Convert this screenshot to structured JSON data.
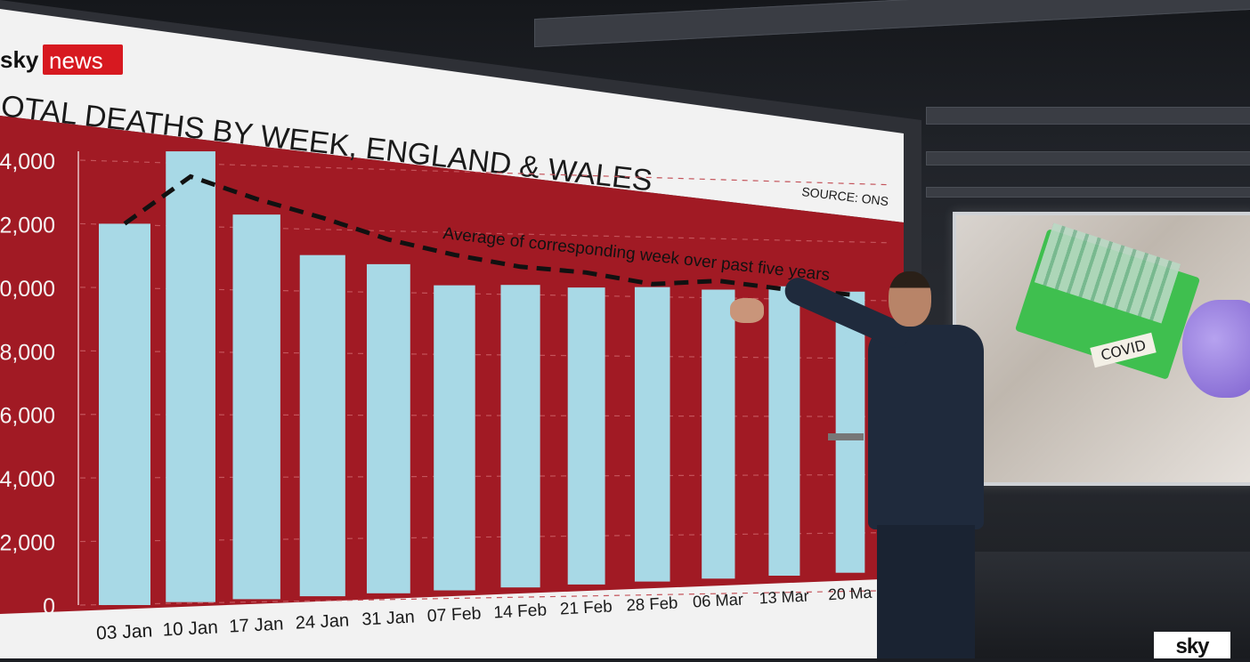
{
  "brand": {
    "sky": "sky",
    "news": "news"
  },
  "corner_logo": "sky",
  "chart_data": {
    "type": "bar",
    "title": "OTAL DEATHS BY WEEK, ENGLAND & WALES",
    "source": "SOURCE: ONS",
    "categories": [
      "03 Jan",
      "10 Jan",
      "17 Jan",
      "24 Jan",
      "31 Jan",
      "07 Feb",
      "14 Feb",
      "21 Feb",
      "28 Feb",
      "06 Mar",
      "13 Mar",
      "20 Ma"
    ],
    "series": [
      {
        "values": [
          12000,
          14300,
          12300,
          11000,
          10700,
          10000,
          10000,
          9900,
          9900,
          9800,
          9900,
          9700
        ]
      },
      {
        "name": "Average of corresponding week over past five years",
        "type": "line",
        "values": [
          12000,
          13500,
          12800,
          12200,
          11500,
          11000,
          10600,
          10400,
          10000,
          10100,
          9800,
          9600
        ]
      }
    ],
    "y_tick_labels": [
      ",4,000",
      "2,000",
      "0,000",
      "8,000",
      "6,000",
      "4,000",
      "2,000",
      "0"
    ],
    "ylim": [
      0,
      14000
    ],
    "grid": true,
    "colors": {
      "background": "#a11a24",
      "bar": "#a8d9e6",
      "line": "#111111"
    }
  },
  "side_screen": {
    "label": "COVID"
  }
}
